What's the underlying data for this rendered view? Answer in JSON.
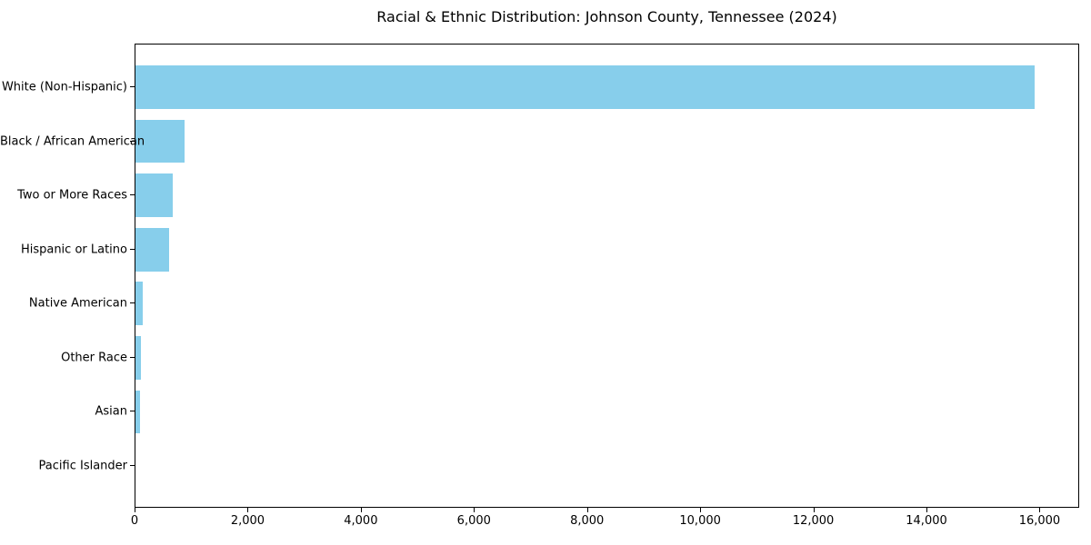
{
  "title": "Racial & Ethnic Distribution: Johnson County, Tennessee (2024)",
  "chart_data": {
    "type": "bar",
    "orientation": "horizontal",
    "title": "Racial & Ethnic Distribution: Johnson County, Tennessee (2024)",
    "xlabel": "",
    "ylabel": "",
    "categories": [
      "White (Non-Hispanic)",
      "Black / African American",
      "Two or More Races",
      "Hispanic or Latino",
      "Native American",
      "Other Race",
      "Asian",
      "Pacific Islander"
    ],
    "values": [
      15890,
      870,
      660,
      590,
      125,
      90,
      80,
      0
    ],
    "xlim": [
      0,
      16700
    ],
    "x_ticks": [
      0,
      2000,
      4000,
      6000,
      8000,
      10000,
      12000,
      14000,
      16000
    ],
    "x_tick_labels": [
      "0",
      "2,000",
      "4,000",
      "6,000",
      "8,000",
      "10,000",
      "12,000",
      "14,000",
      "16,000"
    ],
    "bar_color": "#87CEEB",
    "grid": false,
    "legend": "none",
    "bar_fraction": 0.8
  },
  "colors": {
    "bar": "#87CEEB",
    "axis": "#000000",
    "text": "#000000",
    "background": "#ffffff"
  }
}
